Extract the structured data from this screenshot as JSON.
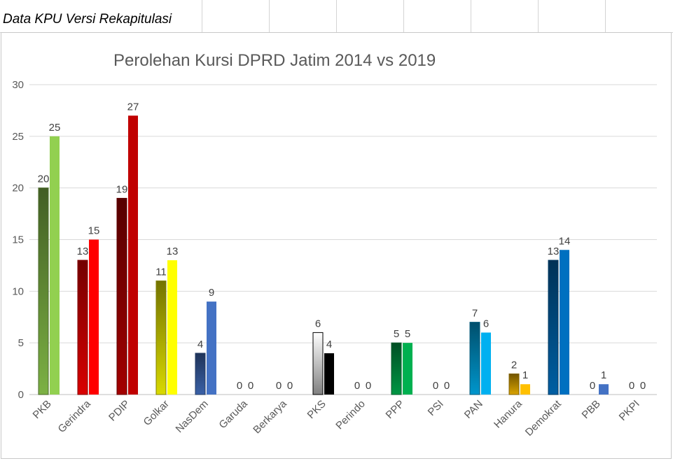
{
  "sheet": {
    "title": "Data KPU Versi Rekapitulasi"
  },
  "colors": {
    "PKB": "#92d050",
    "Gerindra": "#ff0000",
    "PDIP": "#c00000",
    "Golkar": "#ffff00",
    "NasDem": "#4472c4",
    "Garuda": "#7f7f7f",
    "Berkarya": "#7f7f7f",
    "PKS": "#000000",
    "Perindo": "#7f7f7f",
    "PPP": "#00b050",
    "PSI": "#7f7f7f",
    "PAN": "#00b0f0",
    "Hanura": "#ffc000",
    "Demokrat": "#0070c0",
    "PBB": "#4472c4",
    "PKPI": "#7f7f7f"
  },
  "chart_data": {
    "type": "bar",
    "title": "Perolehan Kursi DPRD Jatim 2014 vs 2019",
    "xlabel": "",
    "ylabel": "",
    "ylim": [
      0,
      30
    ],
    "yticks": [
      0,
      5,
      10,
      15,
      20,
      25,
      30
    ],
    "grid": true,
    "legend": "none",
    "categories": [
      "PKB",
      "Gerindra",
      "PDIP",
      "Golkar",
      "NasDem",
      "Garuda",
      "Berkarya",
      "PKS",
      "Perindo",
      "PPP",
      "PSI",
      "PAN",
      "Hanura",
      "Demokrat",
      "PBB",
      "PKPI"
    ],
    "series": [
      {
        "values": [
          20,
          13,
          19,
          11,
          4,
          0,
          0,
          6,
          0,
          5,
          0,
          7,
          2,
          13,
          0,
          0
        ]
      },
      {
        "values": [
          25,
          15,
          27,
          13,
          9,
          0,
          0,
          4,
          0,
          5,
          0,
          6,
          1,
          14,
          1,
          0
        ]
      }
    ]
  }
}
